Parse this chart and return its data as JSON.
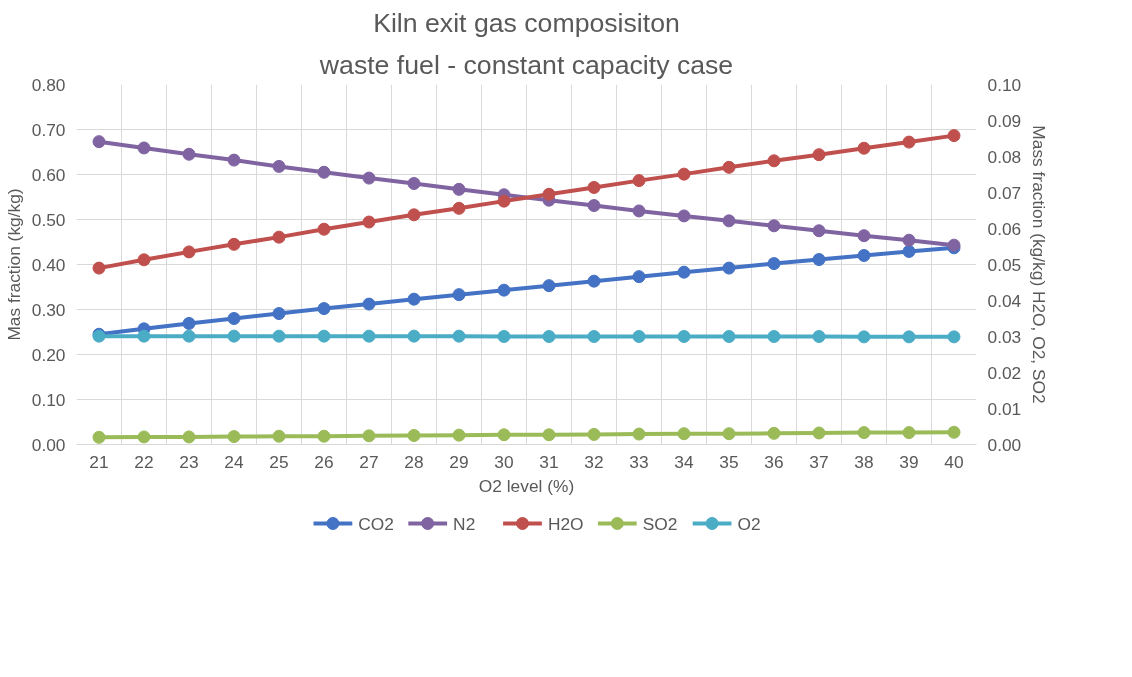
{
  "chart_data": {
    "type": "line",
    "title": "Kiln exit gas composisiton",
    "subtitle": "waste fuel - constant capacity case",
    "xlabel": "O2 level (%)",
    "ylabel": "Mas fraction (kg/kg)",
    "y2label": "Mass fraction (kg/kg) H2O, O2, SO2",
    "categories": [
      "21",
      "22",
      "23",
      "24",
      "25",
      "26",
      "27",
      "28",
      "29",
      "30",
      "31",
      "32",
      "33",
      "34",
      "35",
      "36",
      "37",
      "38",
      "39",
      "40"
    ],
    "series": [
      {
        "name": "CO2",
        "color": "#4472c4",
        "values": [
          0.245,
          0.257,
          0.269,
          0.28,
          0.291,
          0.302,
          0.312,
          0.323,
          0.333,
          0.343,
          0.353,
          0.363,
          0.373,
          0.383,
          0.392,
          0.402,
          0.411,
          0.42,
          0.429,
          0.437
        ]
      },
      {
        "name": "N2",
        "color": "#8064a2",
        "values": [
          0.673,
          0.659,
          0.645,
          0.632,
          0.618,
          0.605,
          0.592,
          0.58,
          0.567,
          0.555,
          0.543,
          0.531,
          0.519,
          0.508,
          0.497,
          0.486,
          0.475,
          0.464,
          0.454,
          0.443
        ]
      },
      {
        "name": "H2O",
        "color": "#c0504d",
        "axis": "y2",
        "values": [
          0.049,
          0.0513,
          0.0535,
          0.0556,
          0.0576,
          0.0598,
          0.0618,
          0.0638,
          0.0656,
          0.0676,
          0.0695,
          0.0714,
          0.0733,
          0.0751,
          0.077,
          0.0788,
          0.0805,
          0.0823,
          0.084,
          0.0858
        ]
      },
      {
        "name": "SO2",
        "color": "#9bbb59",
        "axis": "y2",
        "values": [
          0.002,
          0.0021,
          0.0021,
          0.0022,
          0.0023,
          0.0023,
          0.0024,
          0.0025,
          0.0026,
          0.0027,
          0.0027,
          0.0028,
          0.0029,
          0.003,
          0.003,
          0.0031,
          0.0032,
          0.0033,
          0.0033,
          0.0034
        ]
      },
      {
        "name": "O2",
        "color": "#4bacc6",
        "axis": "y2",
        "values": [
          0.0301,
          0.0301,
          0.0301,
          0.0301,
          0.0301,
          0.0301,
          0.0301,
          0.0301,
          0.0301,
          0.03,
          0.03,
          0.03,
          0.03,
          0.03,
          0.03,
          0.03,
          0.03,
          0.0299,
          0.0299,
          0.0299
        ]
      }
    ],
    "ylim": [
      0,
      0.8
    ],
    "yticks": [
      {
        "value": 0,
        "label": "0.00"
      },
      {
        "value": 0.1,
        "label": "0.10"
      },
      {
        "value": 0.2,
        "label": "0.20"
      },
      {
        "value": 0.3,
        "label": "0.30"
      },
      {
        "value": 0.4,
        "label": "0.40"
      },
      {
        "value": 0.5,
        "label": "0.50"
      },
      {
        "value": 0.6,
        "label": "0.60"
      },
      {
        "value": 0.7,
        "label": "0.70"
      },
      {
        "value": 0.8,
        "label": "0.80"
      }
    ],
    "y2lim": [
      0,
      0.1
    ],
    "y2ticks": [
      {
        "value": 0,
        "label": "0.00"
      },
      {
        "value": 0.01,
        "label": "0.01"
      },
      {
        "value": 0.02,
        "label": "0.02"
      },
      {
        "value": 0.03,
        "label": "0.03"
      },
      {
        "value": 0.04,
        "label": "0.04"
      },
      {
        "value": 0.05,
        "label": "0.05"
      },
      {
        "value": 0.06,
        "label": "0.06"
      },
      {
        "value": 0.07,
        "label": "0.07"
      },
      {
        "value": 0.08,
        "label": "0.08"
      },
      {
        "value": 0.09,
        "label": "0.09"
      },
      {
        "value": 0.1,
        "label": "0.10"
      }
    ],
    "grid": true,
    "legend": "bottom",
    "marker": "circle",
    "line_style": "solid"
  }
}
